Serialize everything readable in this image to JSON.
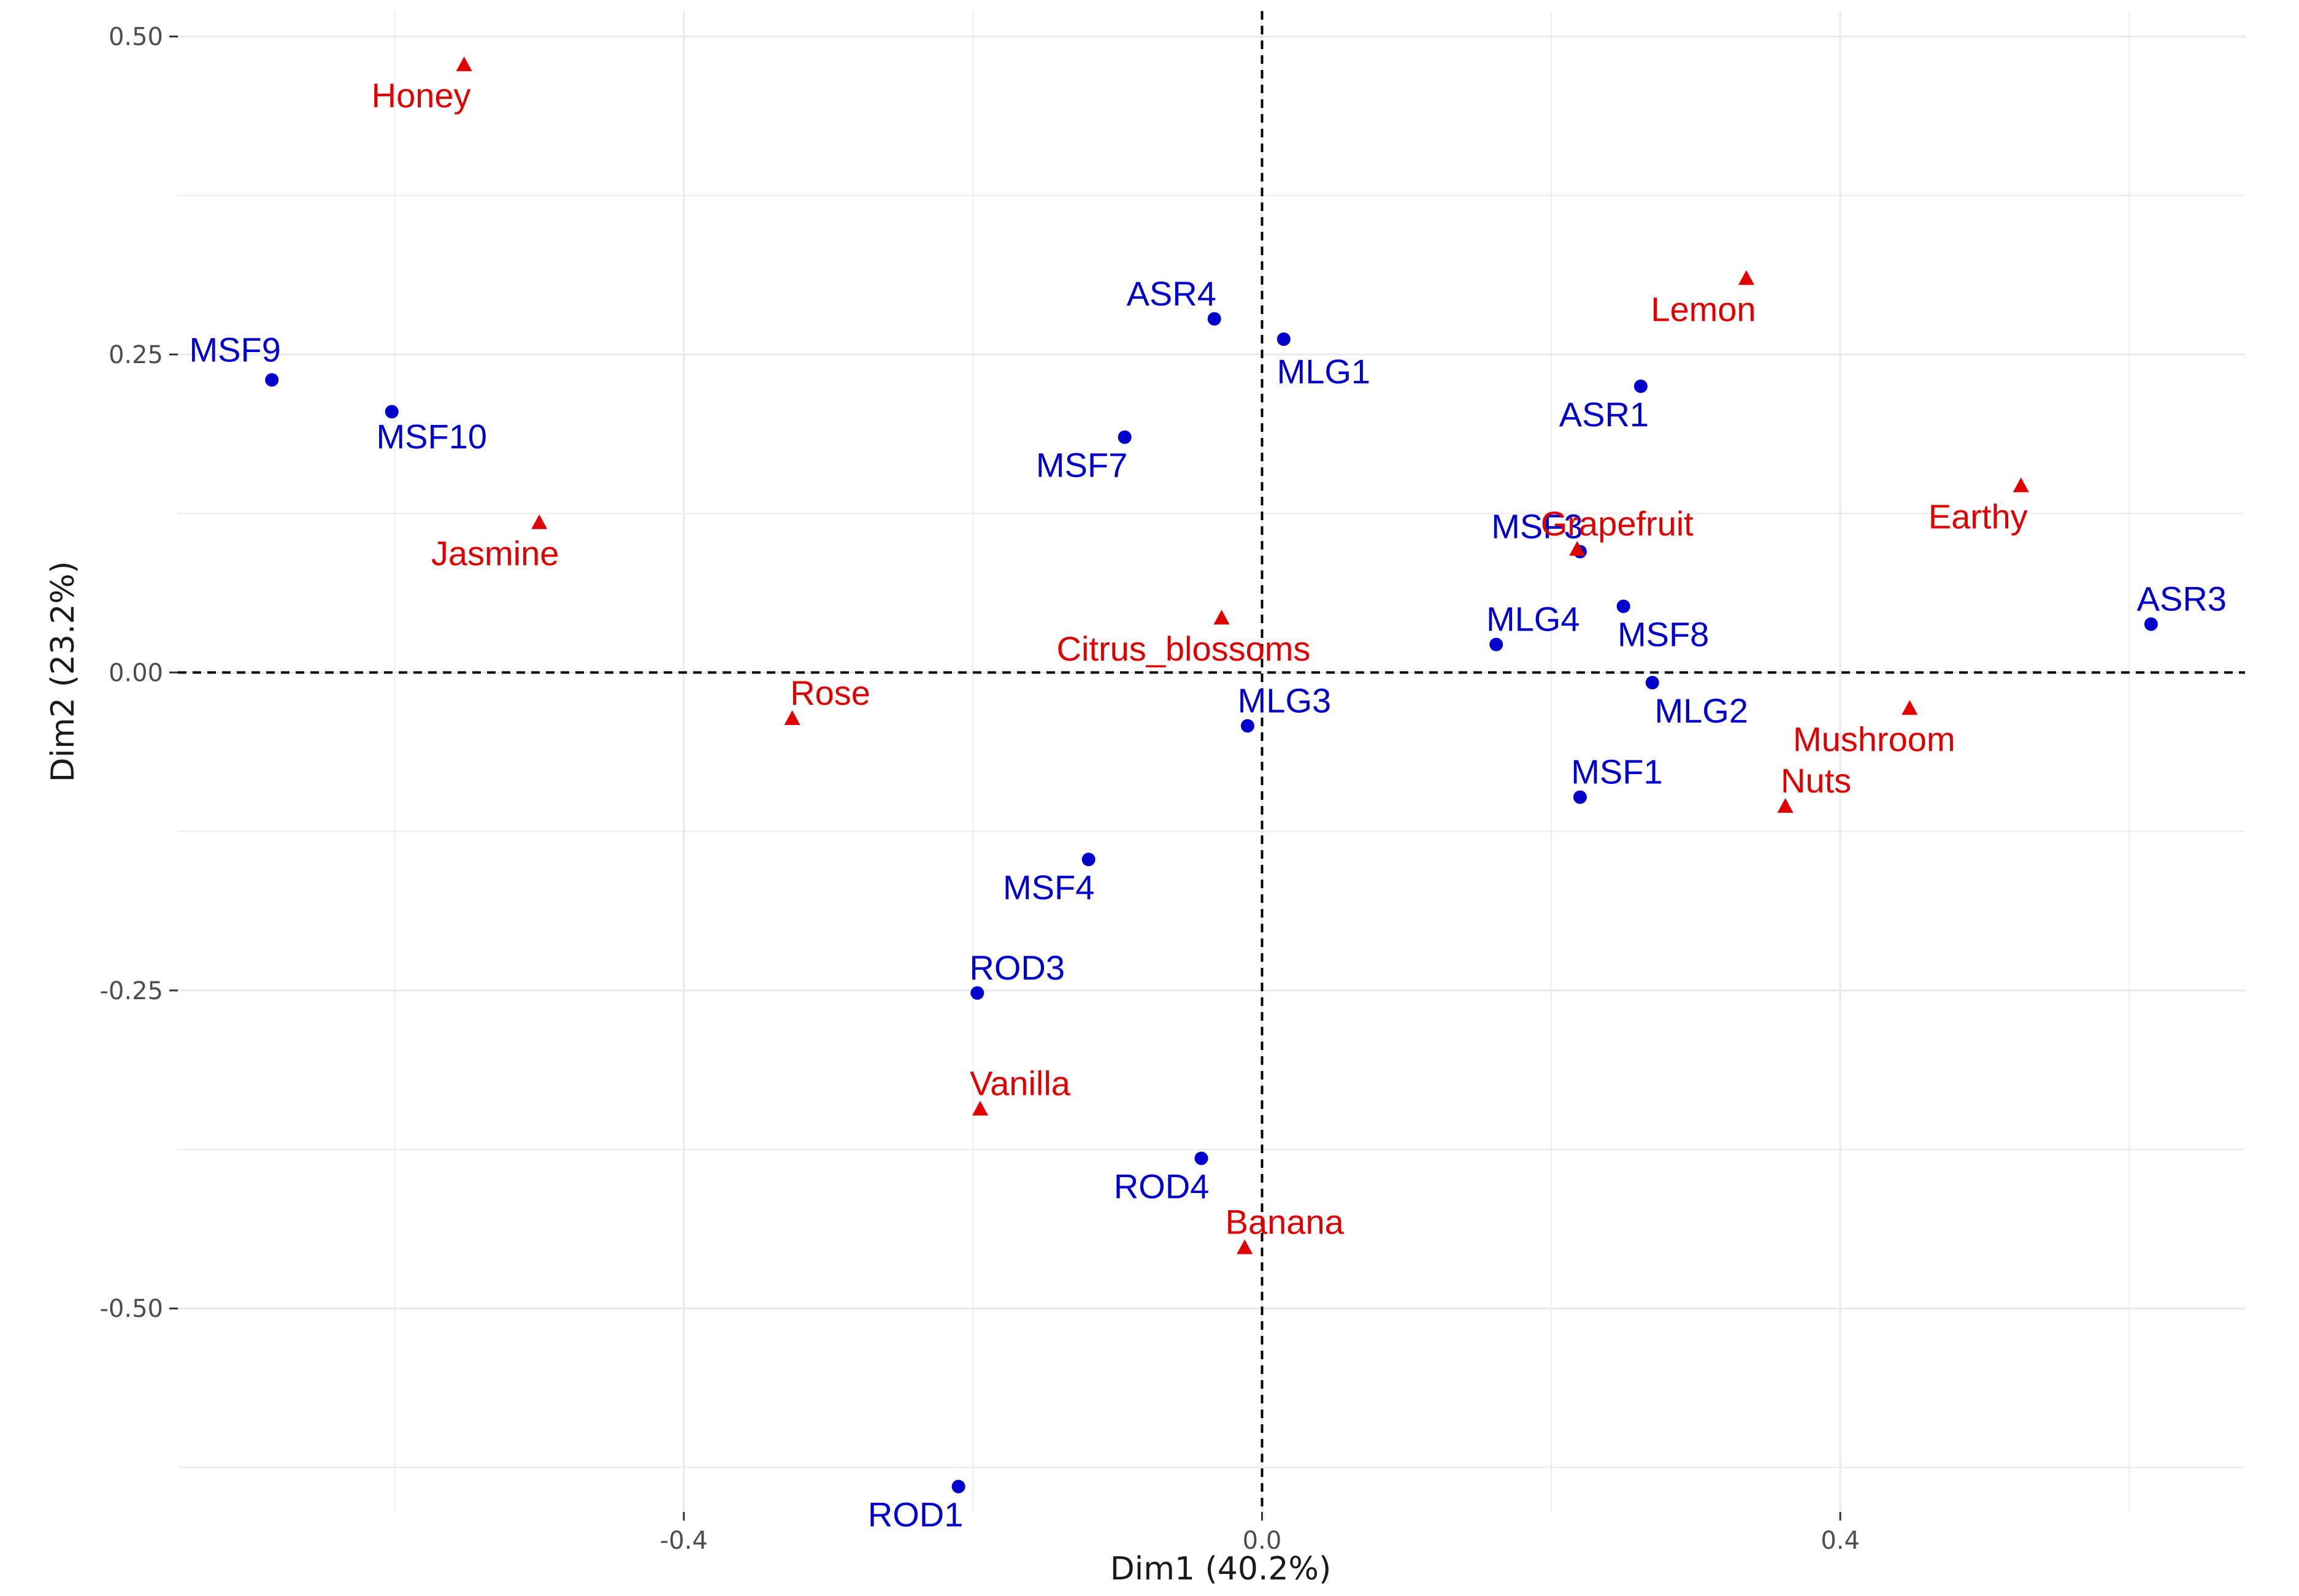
{
  "chart_data": {
    "type": "scatter",
    "title": "",
    "xlabel": "Dim1 (40.2%)",
    "ylabel": "Dim2 (23.2%)",
    "xlim": [
      -0.75,
      0.68
    ],
    "ylim": [
      -0.66,
      0.52
    ],
    "x_ticks": [
      -0.4,
      0.0,
      0.4
    ],
    "x_tick_labels": [
      "-0.4",
      "0.0",
      "0.4"
    ],
    "y_ticks": [
      0.5,
      0.25,
      0.0,
      -0.25,
      -0.5
    ],
    "y_tick_labels": [
      "0.50",
      "0.25",
      "0.00",
      "-0.25",
      "-0.50"
    ],
    "grid": true,
    "reference_lines": {
      "x": 0,
      "y": 0,
      "style": "dashed"
    },
    "colors": {
      "samples": "#0000cc",
      "attributes": "#e00000",
      "grid": "#ebebeb"
    },
    "series": [
      {
        "name": "samples",
        "marker": "circle",
        "points": [
          {
            "label": "MSF9",
            "x": -0.685,
            "y": 0.23
          },
          {
            "label": "MSF10",
            "x": -0.602,
            "y": 0.205
          },
          {
            "label": "ASR4",
            "x": -0.033,
            "y": 0.278
          },
          {
            "label": "MLG1",
            "x": 0.015,
            "y": 0.262
          },
          {
            "label": "MSF7",
            "x": -0.095,
            "y": 0.185
          },
          {
            "label": "ASR1",
            "x": 0.262,
            "y": 0.225
          },
          {
            "label": "MSF3",
            "x": 0.22,
            "y": 0.095
          },
          {
            "label": "MLG4",
            "x": 0.162,
            "y": 0.022
          },
          {
            "label": "MSF8",
            "x": 0.25,
            "y": 0.052
          },
          {
            "label": "MLG2",
            "x": 0.27,
            "y": -0.008
          },
          {
            "label": "MLG3",
            "x": -0.01,
            "y": -0.042
          },
          {
            "label": "MSF1",
            "x": 0.22,
            "y": -0.098
          },
          {
            "label": "ASR3",
            "x": 0.615,
            "y": 0.038
          },
          {
            "label": "MSF4",
            "x": -0.12,
            "y": -0.147
          },
          {
            "label": "ROD3",
            "x": -0.197,
            "y": -0.252
          },
          {
            "label": "ROD4",
            "x": -0.042,
            "y": -0.382
          },
          {
            "label": "ROD1",
            "x": -0.21,
            "y": -0.64
          }
        ]
      },
      {
        "name": "attributes",
        "marker": "triangle",
        "points": [
          {
            "label": "Honey",
            "x": -0.552,
            "y": 0.478
          },
          {
            "label": "Jasmine",
            "x": -0.5,
            "y": 0.118
          },
          {
            "label": "Lemon",
            "x": 0.335,
            "y": 0.31
          },
          {
            "label": "Earthy",
            "x": 0.525,
            "y": 0.147
          },
          {
            "label": "Grapefruit",
            "x": 0.218,
            "y": 0.097
          },
          {
            "label": "Citrus_blossoms",
            "x": -0.028,
            "y": 0.043
          },
          {
            "label": "Rose",
            "x": -0.325,
            "y": -0.036
          },
          {
            "label": "Mushroom",
            "x": 0.448,
            "y": -0.028
          },
          {
            "label": "Nuts",
            "x": 0.362,
            "y": -0.105
          },
          {
            "label": "Vanilla",
            "x": -0.195,
            "y": -0.343
          },
          {
            "label": "Banana",
            "x": -0.012,
            "y": -0.452
          }
        ]
      }
    ]
  }
}
